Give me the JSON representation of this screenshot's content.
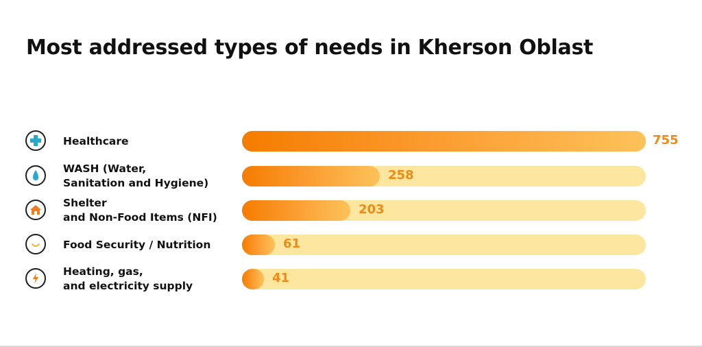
{
  "title": "Most addressed types of needs in Kherson Oblast",
  "chart_data": {
    "type": "bar",
    "orientation": "horizontal",
    "title": "Most addressed types of needs in Kherson Oblast",
    "categories": [
      "Healthcare",
      "WASH (Water,\nSanitation and Hygiene)",
      "Shelter\nand Non-Food Items (NFI)",
      "Food Security / Nutrition",
      "Heating, gas,\nand electricity supply"
    ],
    "values": [
      755,
      258,
      203,
      61,
      41
    ],
    "value_labels": [
      "755",
      "258",
      "203",
      "61",
      "41"
    ],
    "icons": [
      "medical-cross-icon",
      "water-drop-icon",
      "house-icon",
      "smile-icon",
      "lightning-icon"
    ],
    "xlim": [
      0,
      755
    ],
    "grid": false,
    "legend": "none",
    "colors": {
      "bar_start": "#f57c00",
      "bar_end": "#fdc25a",
      "track": "#fde7a0",
      "value_text": "#f08a14",
      "health_icon": "#29a9c9",
      "water_icon": "#29a9c9",
      "shelter_icon": "#f07d1a",
      "food_icon": "#f5b21b",
      "energy_icon": "#f07d1a"
    }
  }
}
